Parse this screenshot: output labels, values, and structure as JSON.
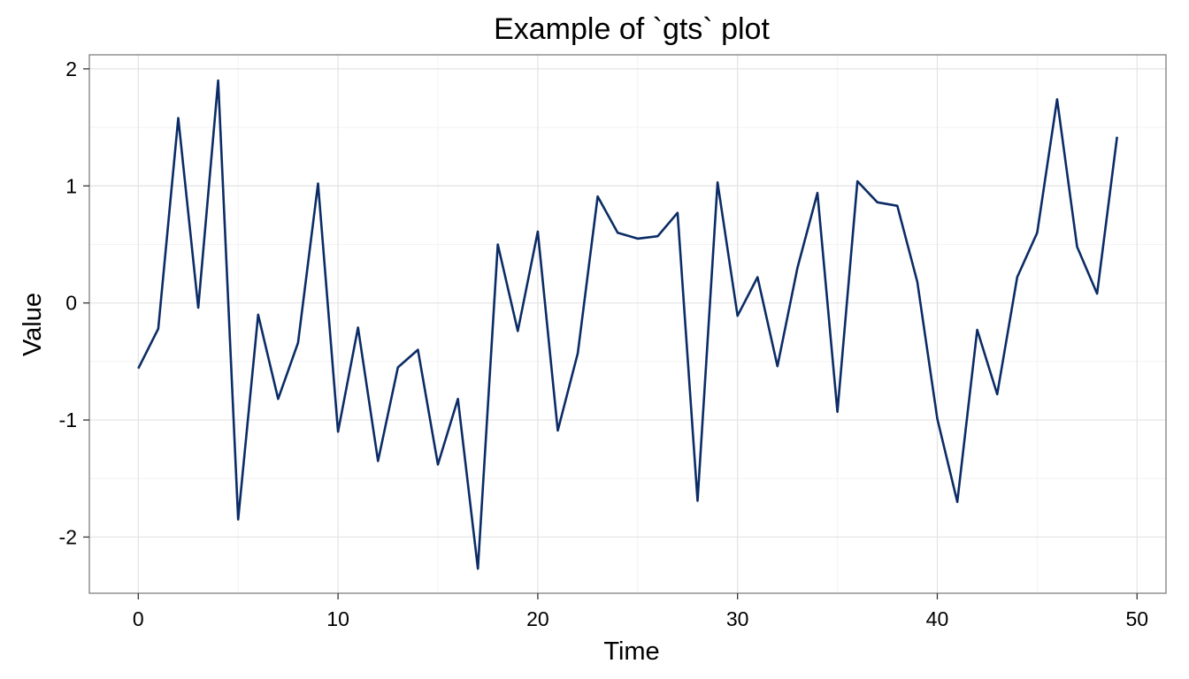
{
  "chart_data": {
    "type": "line",
    "title": "Example of `gts` plot",
    "xlabel": "Time",
    "ylabel": "Value",
    "xlim": [
      -2.45,
      51.45
    ],
    "ylim": [
      -2.48,
      2.12
    ],
    "x_ticks": [
      0,
      10,
      20,
      30,
      40,
      50
    ],
    "y_ticks": [
      -2,
      -1,
      0,
      1,
      2
    ],
    "x_tick_labels": [
      "0",
      "10",
      "20",
      "30",
      "40",
      "50"
    ],
    "y_tick_labels": [
      "-2",
      "-1",
      "0",
      "1",
      "2"
    ],
    "grid": true,
    "legend": "none",
    "line_color": "#0b2c66",
    "series": [
      {
        "x": [
          0,
          1,
          2,
          3,
          4,
          5,
          6,
          7,
          8,
          9,
          10,
          11,
          12,
          13,
          14,
          15,
          16,
          17,
          18,
          19,
          20,
          21,
          22,
          23,
          24,
          25,
          26,
          27,
          28,
          29,
          30,
          31,
          32,
          33,
          34,
          35,
          36,
          37,
          38,
          39,
          40,
          41,
          42,
          43,
          44,
          45,
          46,
          47,
          48,
          49
        ],
        "values": [
          -0.56,
          -0.22,
          1.58,
          -0.04,
          1.9,
          -1.85,
          -0.1,
          -0.82,
          -0.34,
          1.02,
          -1.1,
          -0.21,
          -1.35,
          -0.55,
          -0.4,
          -1.38,
          -0.82,
          -2.27,
          0.5,
          -0.24,
          0.61,
          -1.09,
          -0.43,
          0.91,
          0.6,
          0.55,
          0.57,
          0.77,
          -1.69,
          1.03,
          -0.11,
          0.22,
          -0.54,
          0.3,
          0.94,
          -0.93,
          1.04,
          0.86,
          0.83,
          0.18,
          -0.99,
          -1.7,
          -0.23,
          -0.78,
          0.22,
          0.6,
          1.74,
          0.48,
          0.08,
          1.42
        ]
      }
    ]
  }
}
